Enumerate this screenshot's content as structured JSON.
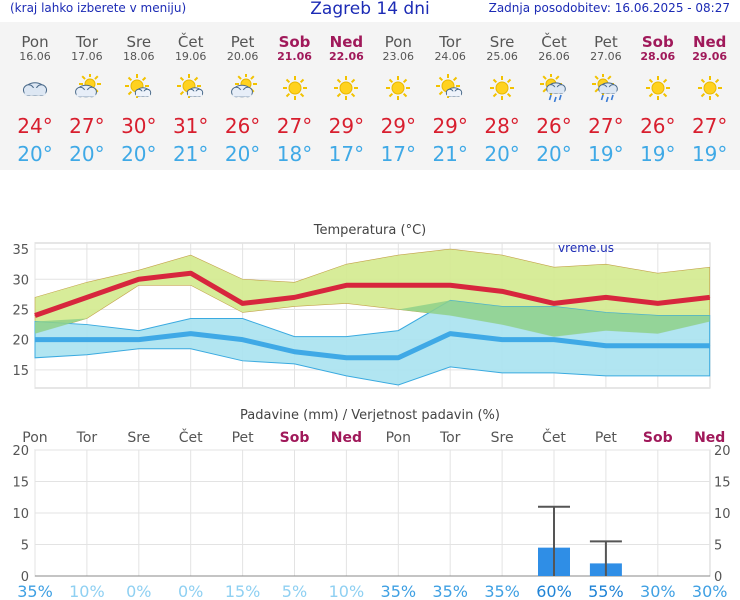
{
  "header": {
    "menu_note": "(kraj lahko izberete v meniju)",
    "title": "Zagreb 14 dni",
    "updated": "Zadnja posodobitev: 16.06.2025 - 08:27"
  },
  "days": [
    {
      "name": "Pon",
      "date": "16.06",
      "weekend": false,
      "icon": "cloud-icon",
      "tmax": "24°",
      "tmin": "20°"
    },
    {
      "name": "Tor",
      "date": "17.06",
      "weekend": false,
      "icon": "partly-cloudy-icon",
      "tmax": "27°",
      "tmin": "20°"
    },
    {
      "name": "Sre",
      "date": "18.06",
      "weekend": false,
      "icon": "sun-small-cloud-icon",
      "tmax": "30°",
      "tmin": "20°"
    },
    {
      "name": "Čet",
      "date": "19.06",
      "weekend": false,
      "icon": "sun-small-cloud-icon",
      "tmax": "31°",
      "tmin": "21°"
    },
    {
      "name": "Pet",
      "date": "20.06",
      "weekend": false,
      "icon": "partly-cloudy-icon",
      "tmax": "26°",
      "tmin": "20°"
    },
    {
      "name": "Sob",
      "date": "21.06",
      "weekend": true,
      "icon": "sun-icon",
      "tmax": "27°",
      "tmin": "18°"
    },
    {
      "name": "Ned",
      "date": "22.06",
      "weekend": true,
      "icon": "sun-icon",
      "tmax": "29°",
      "tmin": "17°"
    },
    {
      "name": "Pon",
      "date": "23.06",
      "weekend": false,
      "icon": "sun-icon",
      "tmax": "29°",
      "tmin": "17°"
    },
    {
      "name": "Tor",
      "date": "24.06",
      "weekend": false,
      "icon": "sun-small-cloud-icon",
      "tmax": "29°",
      "tmin": "21°"
    },
    {
      "name": "Sre",
      "date": "25.06",
      "weekend": false,
      "icon": "sun-icon",
      "tmax": "28°",
      "tmin": "20°"
    },
    {
      "name": "Čet",
      "date": "26.06",
      "weekend": false,
      "icon": "sun-rain-icon",
      "tmax": "26°",
      "tmin": "20°"
    },
    {
      "name": "Pet",
      "date": "27.06",
      "weekend": false,
      "icon": "sun-rain-icon",
      "tmax": "27°",
      "tmin": "19°"
    },
    {
      "name": "Sob",
      "date": "28.06",
      "weekend": true,
      "icon": "sun-icon",
      "tmax": "26°",
      "tmin": "19°"
    },
    {
      "name": "Ned",
      "date": "29.06",
      "weekend": true,
      "icon": "sun-icon",
      "tmax": "27°",
      "tmin": "19°"
    }
  ],
  "colors": {
    "max_line": "#d7263d",
    "min_line": "#3fa9e6",
    "max_band": "#d3ea8e",
    "min_band": "#a8e2ef",
    "overlap_band": "#8fd18a",
    "weekend": "#a0195a",
    "weekday": "#555555",
    "bar": "#2f8ee6",
    "whisker": "#555555"
  },
  "chart_data": [
    {
      "type": "line",
      "title": "Temperatura (°C)",
      "watermark": "vreme.us",
      "x": [
        "16.06",
        "17.06",
        "18.06",
        "19.06",
        "20.06",
        "21.06",
        "22.06",
        "23.06",
        "24.06",
        "25.06",
        "26.06",
        "27.06",
        "28.06",
        "29.06"
      ],
      "ylim": [
        12,
        36
      ],
      "yticks": [
        15,
        20,
        25,
        30,
        35
      ],
      "grid": true,
      "series": [
        {
          "name": "Tmax",
          "values": [
            24,
            27,
            30,
            31,
            26,
            27,
            29,
            29,
            29,
            28,
            26,
            27,
            26,
            27
          ]
        },
        {
          "name": "Tmin",
          "values": [
            20,
            20,
            20,
            21,
            20,
            18,
            17,
            17,
            21,
            20,
            20,
            19,
            19,
            19
          ]
        },
        {
          "name": "Tmax range upper",
          "values": [
            27,
            29.5,
            31.5,
            34,
            30,
            29.5,
            32.5,
            34,
            35,
            34,
            32,
            32.5,
            31,
            32
          ]
        },
        {
          "name": "Tmax range lower",
          "values": [
            21,
            23.5,
            29,
            29,
            24.5,
            25.5,
            26,
            25,
            24,
            22.5,
            20.5,
            21.5,
            21,
            23
          ]
        },
        {
          "name": "Tmin range upper",
          "values": [
            23,
            22.5,
            21.5,
            23.5,
            23.5,
            20.5,
            20.5,
            21.5,
            26.5,
            25.5,
            25.5,
            24.5,
            24,
            24
          ]
        },
        {
          "name": "Tmin range lower",
          "values": [
            17,
            17.5,
            18.5,
            18.5,
            16.5,
            16,
            14,
            12.5,
            15.5,
            14.5,
            14.5,
            14,
            14,
            14
          ]
        }
      ]
    },
    {
      "type": "bar",
      "title": "Padavine (mm) / Verjetnost padavin (%)",
      "categories": [
        "Pon",
        "Tor",
        "Sre",
        "Čet",
        "Pet",
        "Sob",
        "Ned",
        "Pon",
        "Tor",
        "Sre",
        "Čet",
        "Pet",
        "Sob",
        "Ned"
      ],
      "weekend": [
        false,
        false,
        false,
        false,
        false,
        true,
        true,
        false,
        false,
        false,
        false,
        false,
        true,
        true
      ],
      "ylim": [
        0,
        20
      ],
      "yticks": [
        0,
        5,
        10,
        15,
        20
      ],
      "series": [
        {
          "name": "Padavine (mm)",
          "values": [
            0,
            0,
            0,
            0,
            0,
            0,
            0,
            0,
            0,
            0,
            4.5,
            2,
            0,
            0
          ]
        },
        {
          "name": "Padavine max (mm)",
          "values": [
            0,
            0,
            0,
            0,
            0,
            0,
            0,
            0,
            0,
            0,
            11,
            5.5,
            0,
            0
          ]
        }
      ],
      "probability": [
        "35%",
        "10%",
        "0%",
        "0%",
        "15%",
        "5%",
        "10%",
        "35%",
        "35%",
        "35%",
        "60%",
        "55%",
        "30%",
        "30%"
      ]
    }
  ]
}
